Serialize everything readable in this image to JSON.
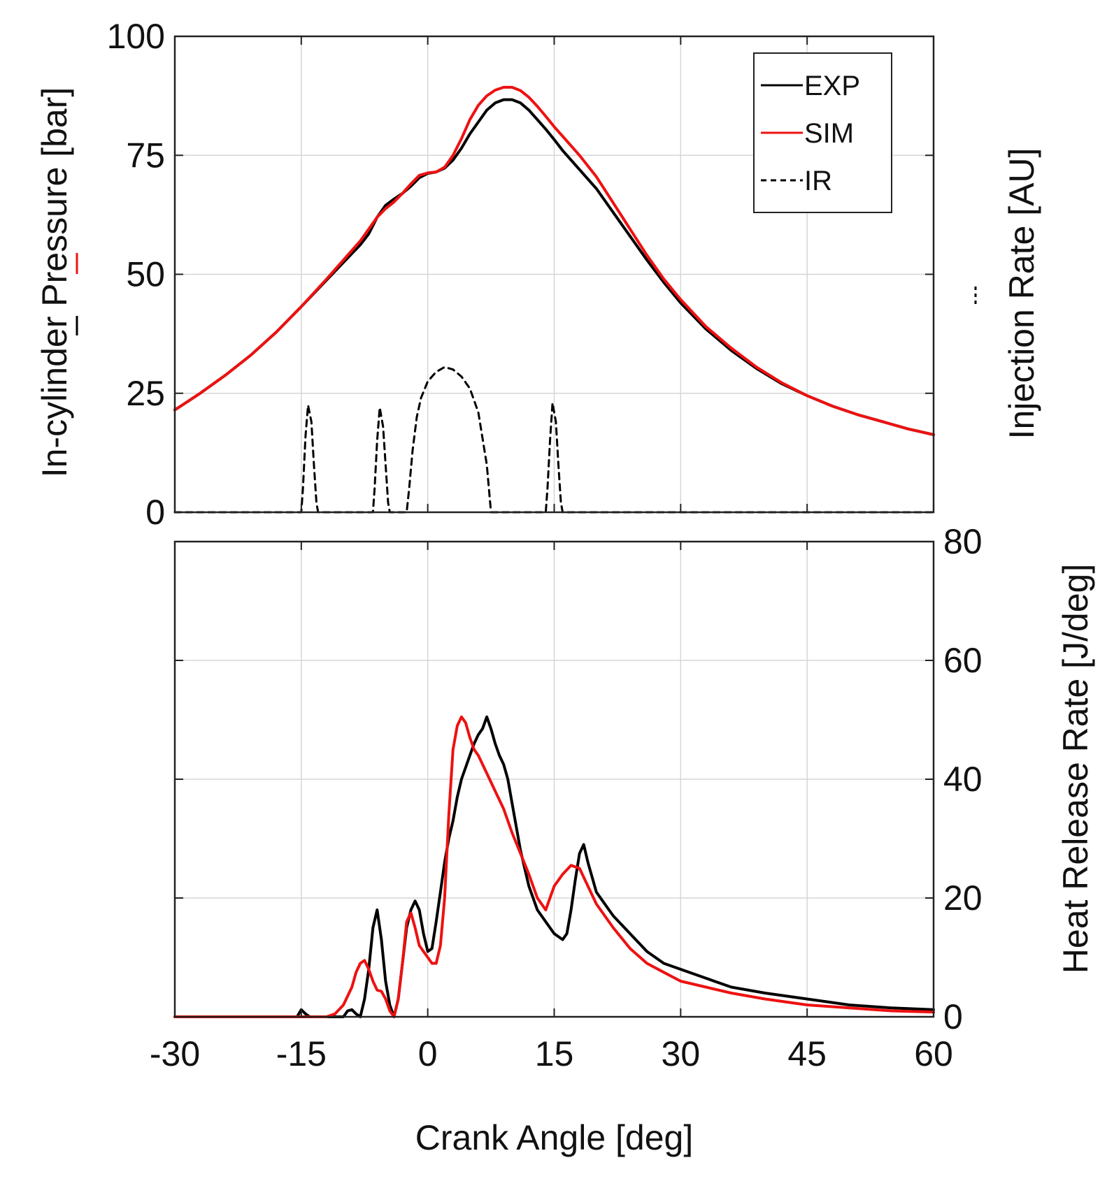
{
  "chart_data": [
    {
      "type": "line",
      "panel": "top",
      "xlabel": "Crank Angle [deg]",
      "ylabel_left": "In-cylinder Pressure [bar]",
      "ylabel_right": "Injection Rate [AU]",
      "xlim": [
        -30,
        60
      ],
      "ylim": [
        0,
        100
      ],
      "xticks": [
        -30,
        -15,
        0,
        15,
        30,
        45,
        60
      ],
      "yticks_left": [
        "0",
        "25",
        "50",
        "75",
        "100"
      ],
      "grid": true,
      "legend_position": "top-right",
      "legend": [
        {
          "label": "EXP",
          "color": "#000000",
          "style": "solid"
        },
        {
          "label": "SIM",
          "color": "#ee1111",
          "style": "solid"
        },
        {
          "label": "IR",
          "color": "#000000",
          "style": "dashed"
        }
      ],
      "series": [
        {
          "name": "EXP",
          "color": "#000000",
          "style": "solid",
          "x": [
            -30,
            -27,
            -24,
            -21,
            -18,
            -15,
            -12,
            -10,
            -8,
            -7,
            -6,
            -5,
            -4,
            -3,
            -2,
            -1,
            0,
            1,
            2,
            3,
            4,
            5,
            6,
            7,
            8,
            9,
            10,
            11,
            12,
            13,
            14,
            15,
            16,
            18,
            20,
            22,
            24,
            26,
            28,
            30,
            33,
            36,
            39,
            42,
            45,
            48,
            51,
            54,
            57,
            60
          ],
          "y": [
            21.5,
            25,
            28.8,
            33,
            37.8,
            43.2,
            48.8,
            52.5,
            56.2,
            58.5,
            62,
            64.5,
            65.8,
            67,
            68.5,
            70.3,
            71.2,
            71.5,
            72.3,
            74,
            76.5,
            79.5,
            82,
            84.5,
            86,
            86.7,
            86.7,
            86,
            84.5,
            82.5,
            80.5,
            78.3,
            76,
            72,
            68,
            63,
            58,
            53,
            48.3,
            44,
            38.5,
            34,
            30.2,
            27,
            24.5,
            22.3,
            20.5,
            19,
            17.5,
            16.3
          ]
        },
        {
          "name": "SIM",
          "color": "#ee1111",
          "style": "solid",
          "x": [
            -30,
            -27,
            -24,
            -21,
            -18,
            -15,
            -12,
            -10,
            -8,
            -7,
            -6,
            -5,
            -4,
            -3,
            -2,
            -1,
            0,
            1,
            2,
            3,
            4,
            5,
            6,
            7,
            8,
            9,
            10,
            11,
            12,
            13,
            14,
            15,
            16,
            18,
            20,
            22,
            24,
            26,
            28,
            30,
            33,
            36,
            39,
            42,
            45,
            48,
            51,
            54,
            57,
            60
          ],
          "y": [
            21.5,
            25,
            28.8,
            33,
            37.8,
            43.2,
            49,
            53,
            57,
            59.5,
            62,
            63.8,
            65.2,
            67,
            69,
            70.8,
            71.3,
            71.5,
            72.5,
            75,
            78.5,
            82.5,
            85.5,
            87.5,
            88.7,
            89.3,
            89.3,
            88.6,
            87.2,
            85.3,
            83.2,
            81,
            79,
            75,
            70.5,
            65,
            59.5,
            54,
            49,
            44.7,
            39,
            34.5,
            30.5,
            27.2,
            24.5,
            22.3,
            20.5,
            19,
            17.5,
            16.3
          ]
        },
        {
          "name": "IR",
          "color": "#000000",
          "style": "dashed",
          "x": [
            -30,
            -15,
            -14.8,
            -14.5,
            -14.2,
            -13.8,
            -13.5,
            -13.2,
            -13,
            -6.5,
            -6.3,
            -6,
            -5.7,
            -5.3,
            -5,
            -4.7,
            -4.5,
            -2.5,
            -2.2,
            -1.8,
            -1.3,
            -0.8,
            0,
            1,
            2,
            3,
            4,
            5,
            6,
            7,
            7.5,
            14,
            14.2,
            14.5,
            14.8,
            15.2,
            15.5,
            15.8,
            16,
            60
          ],
          "y": [
            0,
            0,
            5,
            16,
            22.5,
            19,
            10,
            2,
            0,
            0,
            5,
            15,
            22,
            18,
            10,
            2,
            0,
            0,
            5,
            13,
            20,
            24,
            27.5,
            29.5,
            30.5,
            30,
            28.5,
            26,
            21,
            10,
            0,
            0,
            5,
            15,
            23,
            19,
            10,
            2,
            0,
            0
          ]
        }
      ]
    },
    {
      "type": "line",
      "panel": "bottom",
      "xlabel": "Crank Angle [deg]",
      "ylabel_right": "Heat Release Rate [J/deg]",
      "xlim": [
        -30,
        60
      ],
      "ylim": [
        0,
        80
      ],
      "xticks": [
        -30,
        -15,
        0,
        15,
        30,
        45,
        60
      ],
      "yticks_right": [
        "0",
        "20",
        "40",
        "60",
        "80"
      ],
      "grid": true,
      "series": [
        {
          "name": "EXP",
          "color": "#000000",
          "style": "solid",
          "x": [
            -30,
            -15.5,
            -15,
            -14.5,
            -14,
            -10,
            -9.5,
            -9,
            -8.5,
            -8,
            -7.5,
            -7,
            -6.5,
            -6,
            -5.5,
            -5,
            -4.5,
            -4,
            -3.5,
            -3,
            -2.5,
            -2,
            -1.5,
            -1,
            -0.5,
            0,
            0.5,
            1,
            1.5,
            2,
            2.5,
            3,
            3.5,
            4,
            4.5,
            5,
            5.5,
            6,
            6.5,
            7,
            7.5,
            8,
            8.5,
            9,
            9.5,
            10,
            11,
            12,
            13,
            14,
            15,
            15.5,
            16,
            16.5,
            17,
            17.5,
            18,
            18.5,
            19,
            20,
            21,
            22,
            24,
            26,
            28,
            30,
            33,
            36,
            40,
            45,
            50,
            55,
            60
          ],
          "y": [
            0,
            0,
            1.2,
            0.5,
            0,
            0,
            1,
            1.2,
            0.5,
            0,
            3,
            8,
            15,
            18,
            13,
            6,
            2,
            0,
            3,
            9,
            15,
            18,
            19.5,
            18,
            14,
            11,
            11.5,
            16,
            21,
            26,
            30,
            33,
            37,
            40,
            42,
            44,
            46,
            47.5,
            48.5,
            50.5,
            48.5,
            46,
            44,
            42.5,
            40,
            36,
            28,
            22,
            18,
            16,
            14,
            13.5,
            13,
            14,
            18,
            23,
            27.5,
            29,
            26,
            21,
            19,
            17,
            14,
            11,
            9,
            8,
            6.5,
            5,
            4,
            3,
            2,
            1.5,
            1.2
          ]
        },
        {
          "name": "SIM",
          "color": "#ee1111",
          "style": "solid",
          "x": [
            -30,
            -12,
            -11,
            -10,
            -9,
            -8.5,
            -8,
            -7.5,
            -7,
            -6.5,
            -6,
            -5.5,
            -5,
            -4.5,
            -4,
            -3.5,
            -3,
            -2.5,
            -2,
            -1.5,
            -1,
            -0.5,
            0,
            0.5,
            1,
            1.5,
            2,
            2.5,
            3,
            3.5,
            4,
            4.5,
            5,
            5.5,
            6,
            7,
            8,
            9,
            10,
            11,
            12,
            13,
            14,
            15,
            16,
            17,
            18,
            19,
            20,
            22,
            24,
            26,
            28,
            30,
            33,
            36,
            40,
            45,
            50,
            55,
            60
          ],
          "y": [
            0,
            0,
            0.5,
            2,
            5,
            7.5,
            9,
            9.5,
            8,
            6,
            4.5,
            4.3,
            3,
            1,
            0,
            3,
            9,
            16,
            17.5,
            15,
            12,
            11,
            10,
            9,
            9,
            12,
            20,
            34,
            45,
            49,
            50.5,
            49.5,
            47,
            45,
            44,
            41,
            38,
            35,
            31,
            27.5,
            24,
            20,
            18,
            22,
            24,
            25.5,
            25,
            22,
            19,
            15,
            11.5,
            9,
            7.5,
            6,
            5,
            4,
            3,
            2,
            1.5,
            1,
            0.8
          ]
        }
      ]
    }
  ]
}
